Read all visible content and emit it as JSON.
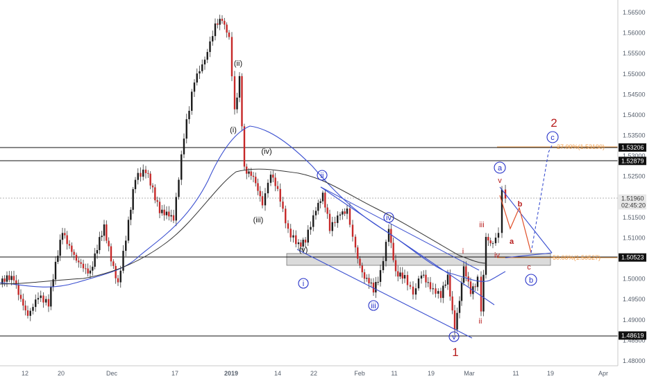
{
  "chart_data": {
    "type": "candlestick",
    "x_ticks": [
      "12",
      "20",
      "Dec",
      "17",
      "2019",
      "14",
      "22",
      "Feb",
      "11",
      "19",
      "Mar",
      "11",
      "19",
      "Apr"
    ],
    "y_ticks": [
      "1.56500",
      "1.56000",
      "1.55500",
      "1.55000",
      "1.54500",
      "1.54000",
      "1.53500",
      "1.53000",
      "1.52500",
      "1.52000",
      "1.51500",
      "1.51000",
      "1.50500",
      "1.50000",
      "1.49500",
      "1.49000",
      "1.48500",
      "1.48000"
    ],
    "ylim": [
      1.4795,
      1.5683
    ],
    "grid": false,
    "level_tags": [
      {
        "label": "1.53206",
        "value": 1.53206,
        "style": "dark"
      },
      {
        "label": "1.52879",
        "value": 1.52879,
        "style": "dark"
      },
      {
        "label": "1.51960",
        "value": 1.5196,
        "style": "light"
      },
      {
        "label": "02:45:20",
        "value": 1.51795,
        "style": "light"
      },
      {
        "label": "1.50523",
        "value": 1.50523,
        "style": "dark"
      },
      {
        "label": "1.48619",
        "value": 1.48619,
        "style": "dark"
      }
    ],
    "horizontal_lines": [
      1.53206,
      1.52879,
      1.50523,
      1.48619
    ],
    "current_price": 1.5196,
    "fib_labels": [
      {
        "text": "27.00%(1.53190)",
        "value": 1.5321
      },
      {
        "text": "50.00%(1.50527)",
        "value": 1.5053
      }
    ],
    "wave_labels_black": [
      "(ii)",
      "(i)",
      "(iv)",
      "(iii)",
      "(v)"
    ],
    "wave_labels_blue": [
      "ii",
      "iv",
      "i",
      "iii",
      "v"
    ],
    "wave_labels_red_small": [
      "v",
      "iii",
      "iv",
      "i",
      "ii"
    ],
    "wave_labels_red_large": [
      "2",
      "1"
    ],
    "projection_labels": [
      "a",
      "b",
      "a",
      "c"
    ],
    "circle_labels": [
      "a",
      "c",
      "b"
    ],
    "colors": {
      "up": "#26a69a",
      "down": "#c62828",
      "candle": "#1a1a1a",
      "ma_blue": "#3a4fd0",
      "ma_black": "#333333",
      "fib": "#f0a050",
      "red_label": "#b71c1c",
      "blue_label": "#2430c8"
    }
  }
}
